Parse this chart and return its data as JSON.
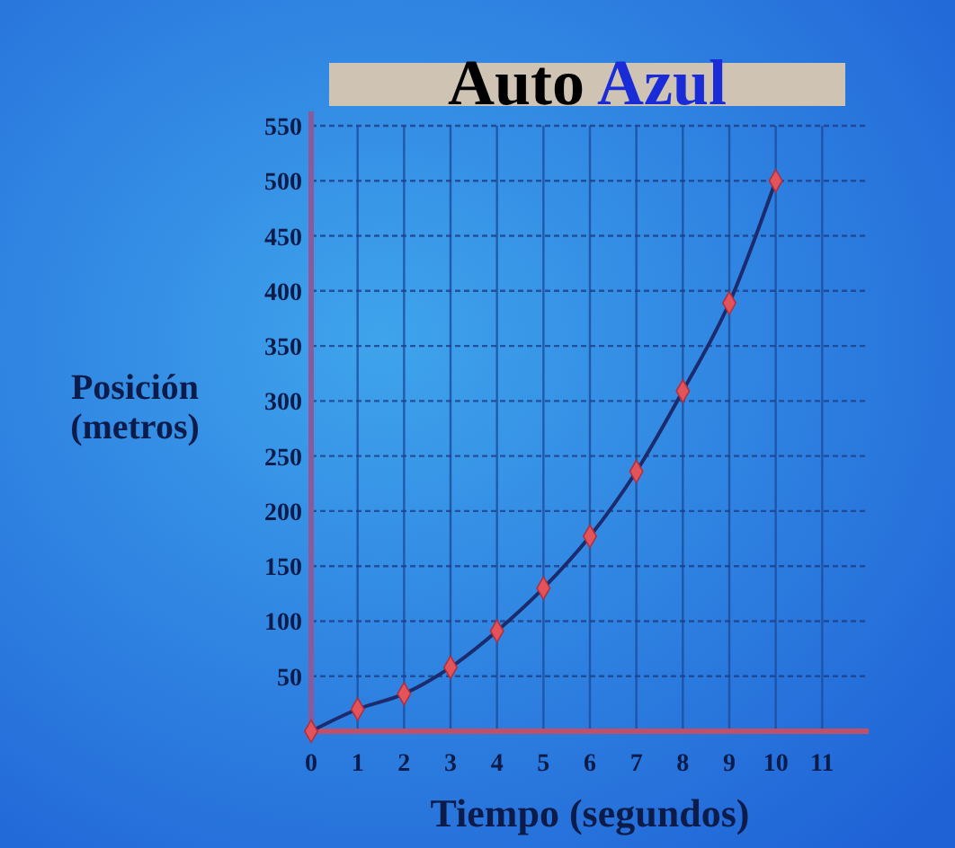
{
  "chart_data": {
    "type": "line",
    "title": "Auto Azul",
    "xlabel": "Tiempo (segundos)",
    "ylabel": "Posición\n(metros)",
    "x": [
      0,
      1,
      2,
      3,
      4,
      5,
      6,
      7,
      8,
      9,
      10
    ],
    "series": [
      {
        "color": "#1c2a6e",
        "values": [
          0,
          20,
          34,
          58,
          91,
          130,
          177,
          236,
          309,
          389,
          500
        ]
      }
    ],
    "xlim": [
      0,
      12
    ],
    "xticks": [
      0,
      1,
      2,
      3,
      4,
      5,
      6,
      7,
      8,
      9,
      10,
      11
    ],
    "ylim": [
      0,
      550
    ],
    "yticks": [
      {
        "value": 0,
        "label": null
      },
      50,
      100,
      150,
      200,
      250,
      300,
      350,
      400,
      450,
      500,
      550
    ],
    "grid": true,
    "marker": "diamond",
    "line_style": "solid"
  }
}
